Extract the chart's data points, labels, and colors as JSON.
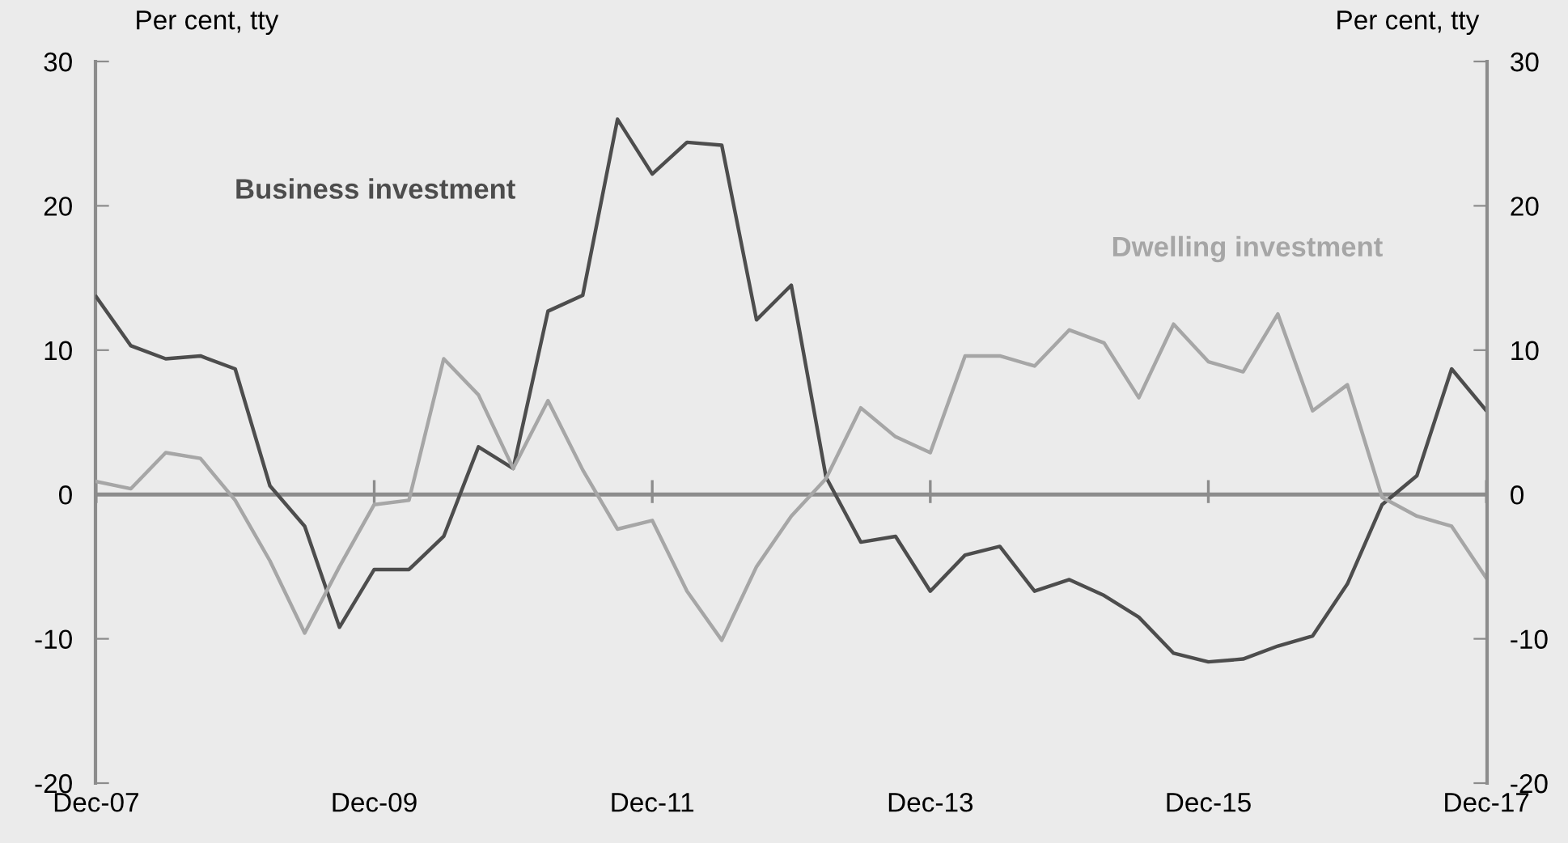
{
  "chart_data": {
    "type": "line",
    "ylabel": "Per cent, tty",
    "y2label": "Per cent, tty",
    "categories": [
      "Dec-07",
      null,
      null,
      null,
      null,
      null,
      null,
      null,
      "Dec-09",
      null,
      null,
      null,
      null,
      null,
      null,
      null,
      "Dec-11",
      null,
      null,
      null,
      null,
      null,
      null,
      null,
      "Dec-13",
      null,
      null,
      null,
      null,
      null,
      null,
      null,
      "Dec-15",
      null,
      null,
      null,
      null,
      null,
      null,
      null,
      "Dec-17"
    ],
    "series": [
      {
        "name": "Business investment",
        "color": "#4d4d4d",
        "values": [
          13.7,
          10.3,
          9.4,
          9.6,
          8.7,
          0.6,
          -2.2,
          -9.2,
          -5.2,
          -5.2,
          -2.9,
          3.3,
          1.8,
          12.7,
          13.8,
          26.0,
          22.2,
          24.4,
          24.2,
          12.1,
          14.5,
          1.2,
          -3.3,
          -2.9,
          -6.7,
          -4.2,
          -3.6,
          -6.7,
          -5.9,
          -7.0,
          -8.5,
          -11.0,
          -11.6,
          -11.4,
          -10.5,
          -9.8,
          -6.2,
          -0.7,
          1.3,
          8.7,
          5.8
        ]
      },
      {
        "name": "Dwelling investment",
        "color": "#a6a6a6",
        "values": [
          0.9,
          0.4,
          2.9,
          2.5,
          -0.4,
          -4.6,
          -9.6,
          -5.0,
          -0.7,
          -0.4,
          9.4,
          6.9,
          1.8,
          6.5,
          1.7,
          -2.4,
          -1.8,
          -6.7,
          -10.1,
          -5.0,
          -1.5,
          1.1,
          6.0,
          4.0,
          2.9,
          9.6,
          9.6,
          8.9,
          11.4,
          10.5,
          6.7,
          11.8,
          9.2,
          8.5,
          12.5,
          5.8,
          7.6,
          -0.2,
          -1.5,
          -2.2,
          -5.8
        ]
      }
    ],
    "ylim": [
      -20,
      30
    ],
    "yticks": [
      -20,
      -10,
      0,
      10,
      20,
      30
    ],
    "y2lim": [
      -20,
      30
    ],
    "y2ticks": [
      -20,
      -10,
      0,
      10,
      20,
      30
    ],
    "ref_lines": [
      {
        "axis": "y",
        "value": 0,
        "color": "#8c8c8c"
      }
    ],
    "grid": false,
    "legend": false,
    "marker": "none",
    "line_style": "solid"
  }
}
